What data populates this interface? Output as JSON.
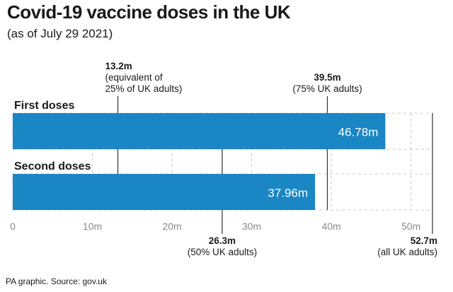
{
  "header": {
    "title": "Covid-19 vaccine doses in the UK",
    "subtitle": "(as of July 29 2021)"
  },
  "footer": {
    "source": "PA graphic. Source: gov.uk"
  },
  "colors": {
    "bar": "#1a86c4",
    "text": "#1a1a1a",
    "axis_text": "#8a8a8a",
    "grid": "#c8c8c8",
    "reference_line": "#333333"
  },
  "chart_data": {
    "type": "bar",
    "orientation": "horizontal",
    "title": "Covid-19 vaccine doses in the UK",
    "subtitle": "(as of July 29 2021)",
    "categories": [
      "First doses",
      "Second doses"
    ],
    "values": [
      46.78,
      37.96
    ],
    "value_labels": [
      "46.78m",
      "37.96m"
    ],
    "xlim": [
      0,
      52.7
    ],
    "x_ticks": [
      0,
      10,
      20,
      30,
      40,
      50
    ],
    "x_tick_labels": [
      "0",
      "10m",
      "20m",
      "30m",
      "40m",
      "50m"
    ],
    "grid": true,
    "reference_lines": [
      {
        "value": 13.2,
        "label_value": "13.2m",
        "label_note": [
          "(equivalent of",
          "25% of UK adults)"
        ],
        "position": "top"
      },
      {
        "value": 39.5,
        "label_value": "39.5m",
        "label_note": [
          "(75% UK adults)"
        ],
        "position": "top"
      },
      {
        "value": 26.3,
        "label_value": "26.3m",
        "label_note": [
          "(50% UK adults)"
        ],
        "position": "bottom"
      },
      {
        "value": 52.7,
        "label_value": "52.7m",
        "label_note": [
          "(all UK adults)"
        ],
        "position": "bottom"
      }
    ]
  }
}
